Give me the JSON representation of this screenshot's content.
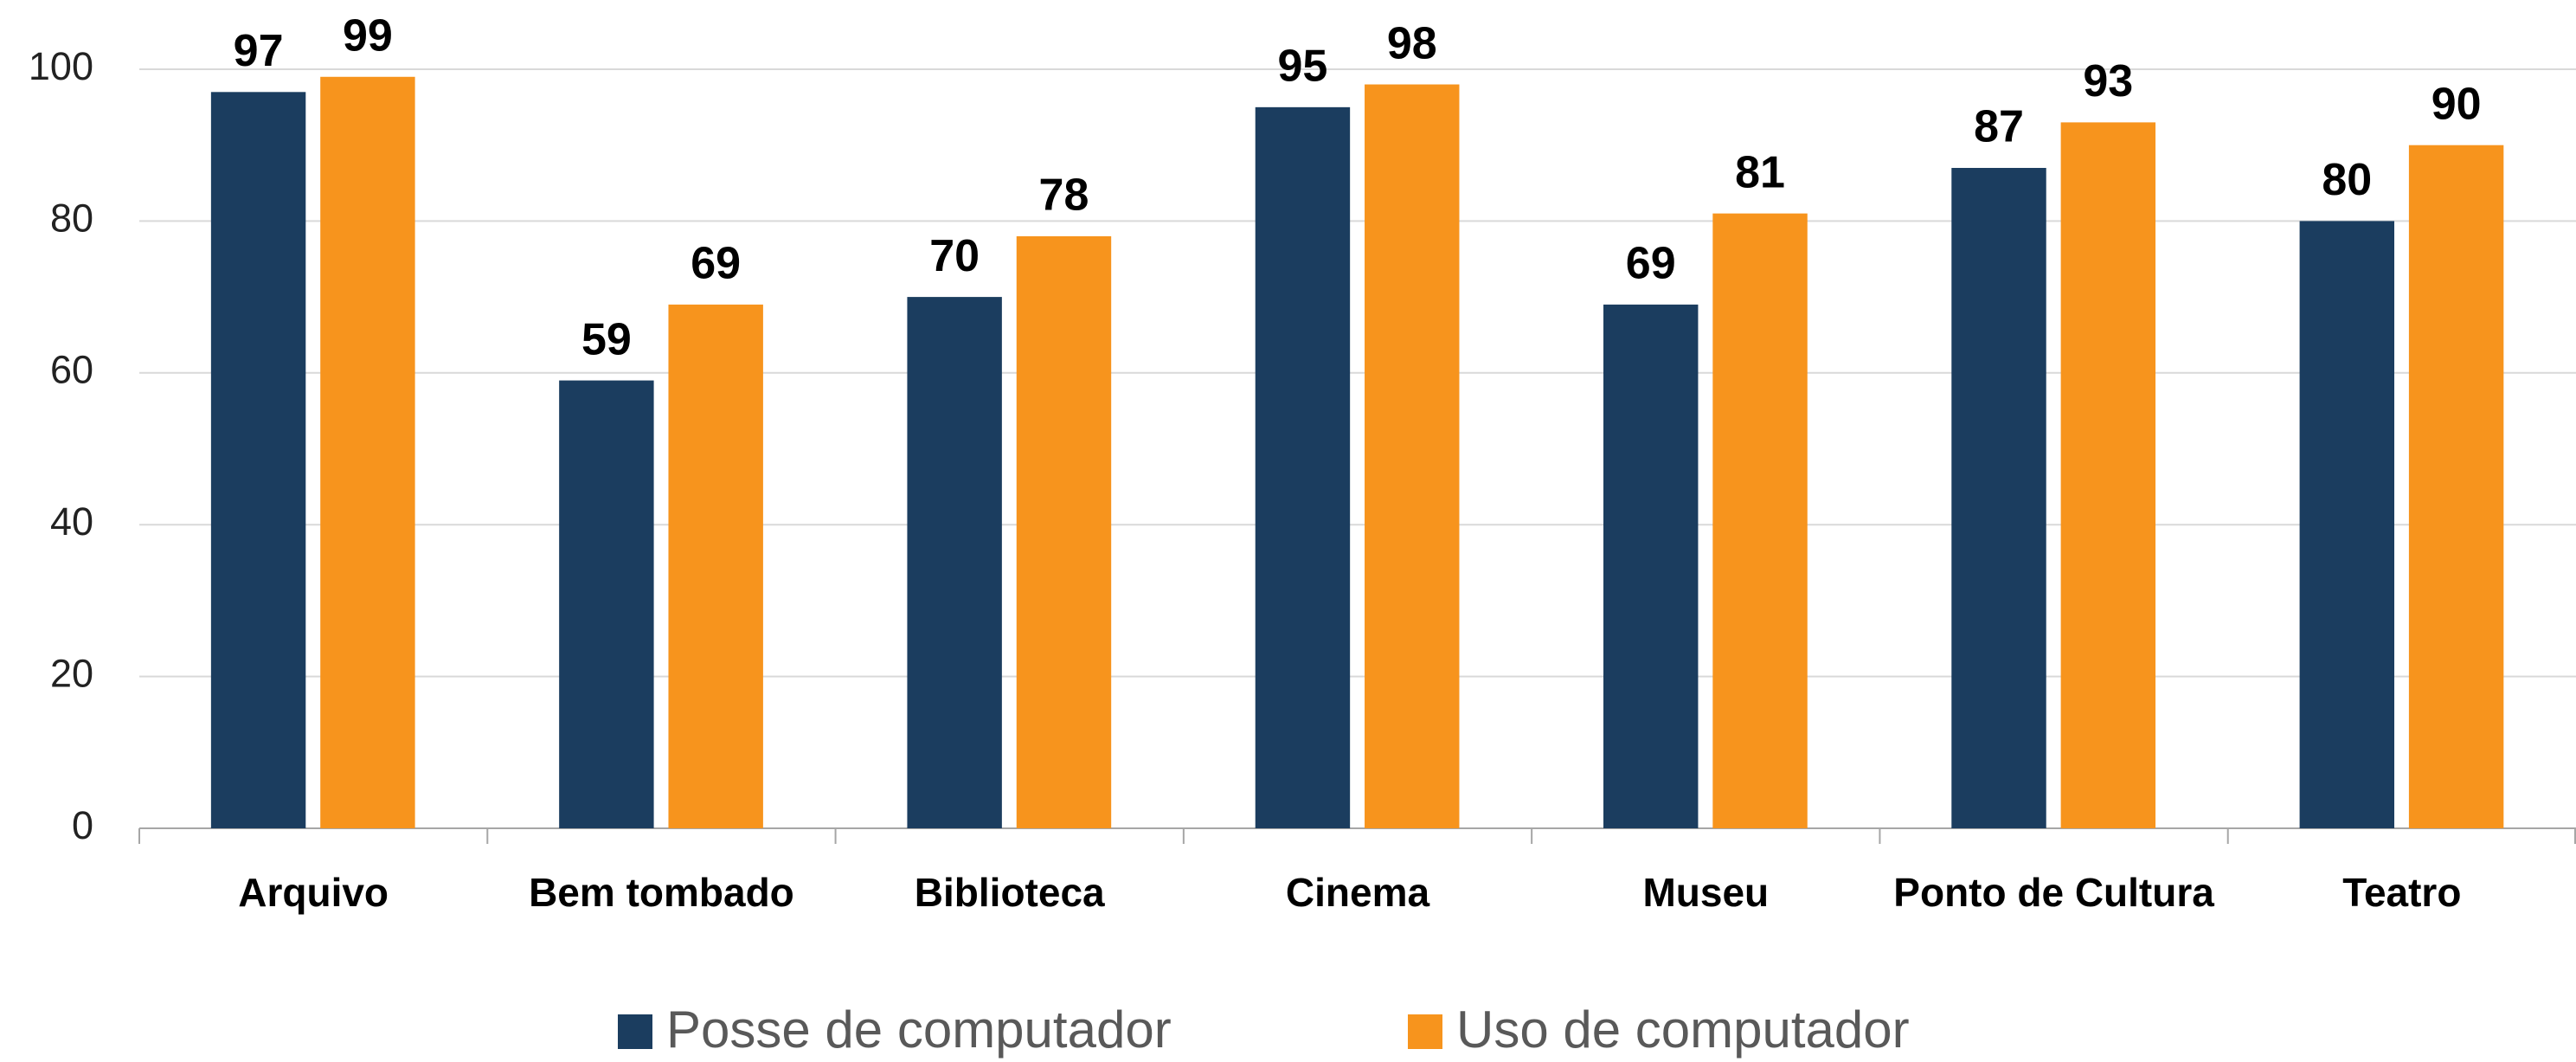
{
  "chart_data": {
    "type": "bar",
    "categories": [
      "Arquivo",
      "Bem tombado",
      "Biblioteca",
      "Cinema",
      "Museu",
      "Ponto de Cultura",
      "Teatro"
    ],
    "series": [
      {
        "name": "Posse de computador",
        "color": "#1b3d5f",
        "values": [
          97,
          59,
          70,
          95,
          69,
          87,
          80
        ]
      },
      {
        "name": "Uso de computador",
        "color": "#f7941d",
        "values": [
          99,
          69,
          78,
          98,
          81,
          93,
          90
        ]
      }
    ],
    "ylim": [
      0,
      100
    ],
    "yticks": [
      0,
      20,
      40,
      60,
      80,
      100
    ],
    "grid": true,
    "legend": "bottom"
  }
}
